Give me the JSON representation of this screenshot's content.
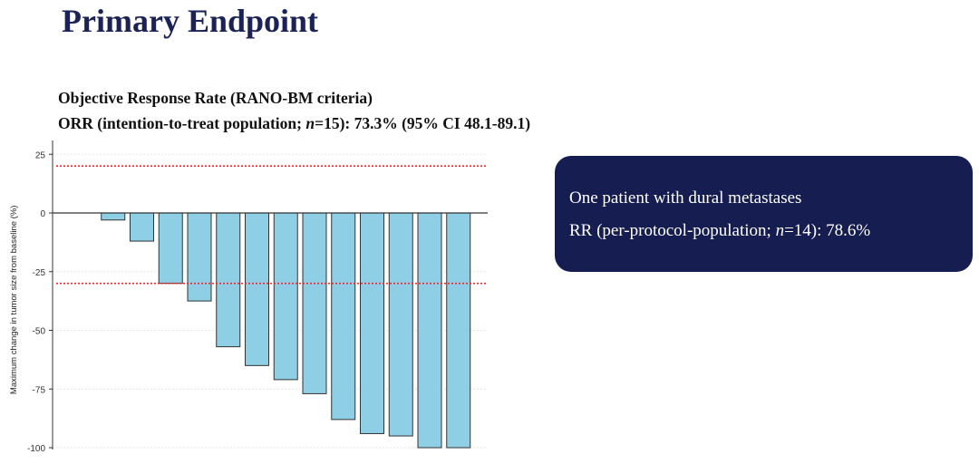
{
  "header": {
    "title": "Primary Endpoint"
  },
  "subtitle": {
    "line1": "Objective Response Rate (RANO-BM criteria)",
    "line2_pre": "ORR (intention-to-treat population; ",
    "line2_n": "n",
    "line2_post": "=15): 73.3% (95% CI 48.1-89.1)"
  },
  "callout": {
    "line1": "One patient with dural metastases",
    "line2_pre": "RR (per-protocol-population; ",
    "line2_n": "n",
    "line2_post": "=14): 78.6%"
  },
  "chart_data": {
    "type": "bar",
    "ylabel": "Maximum change in tumor size from baseline (%)",
    "ylim": [
      -100,
      30
    ],
    "yticks": [
      25,
      0,
      -25,
      -50,
      -75,
      -100
    ],
    "values": [
      0,
      -3,
      -12,
      -30,
      -37.5,
      -57,
      -65,
      -71,
      -77,
      -88,
      -94,
      -95,
      -100,
      -100
    ],
    "reference_lines": [
      20,
      -30
    ],
    "bar_color": "#8ecfe6",
    "reference_color": "#ff2020",
    "grid": true
  }
}
